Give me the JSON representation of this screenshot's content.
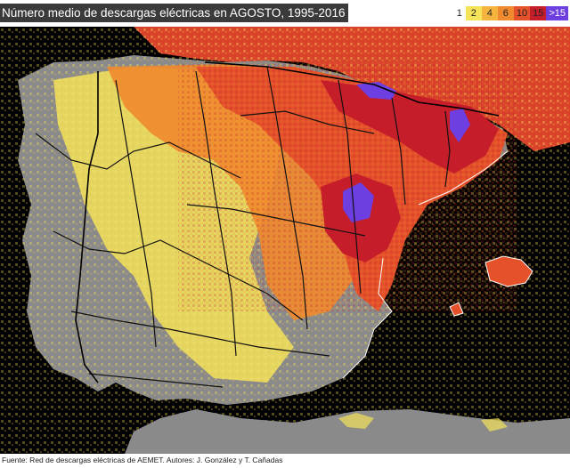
{
  "title": "Número medio de descargas eléctricas  en AGOSTO, 1995-2016",
  "legend": {
    "first_label": "1",
    "bins": [
      {
        "label": "2",
        "color": "#f5e35a"
      },
      {
        "label": "4",
        "color": "#f4b43e"
      },
      {
        "label": "6",
        "color": "#f08a2e"
      },
      {
        "label": "10",
        "color": "#e4512a"
      },
      {
        "label": "15",
        "color": "#c61d2b"
      },
      {
        "label": ">15",
        "color": "#6d3ee0"
      }
    ]
  },
  "map_colors": {
    "sea": "#000000",
    "land_relief": "#8a8a8a",
    "low": "#f5e35a",
    "mid_low": "#f4b43e",
    "mid": "#f08a2e",
    "high": "#e4512a",
    "very_high": "#c61d2b",
    "extreme": "#6d3ee0",
    "borders": "#111111",
    "coastline": "#ffffff"
  },
  "footer": "Fuente: Red de descargas eléctricas de AEMET. Autores: J. González y T. Cañadas"
}
